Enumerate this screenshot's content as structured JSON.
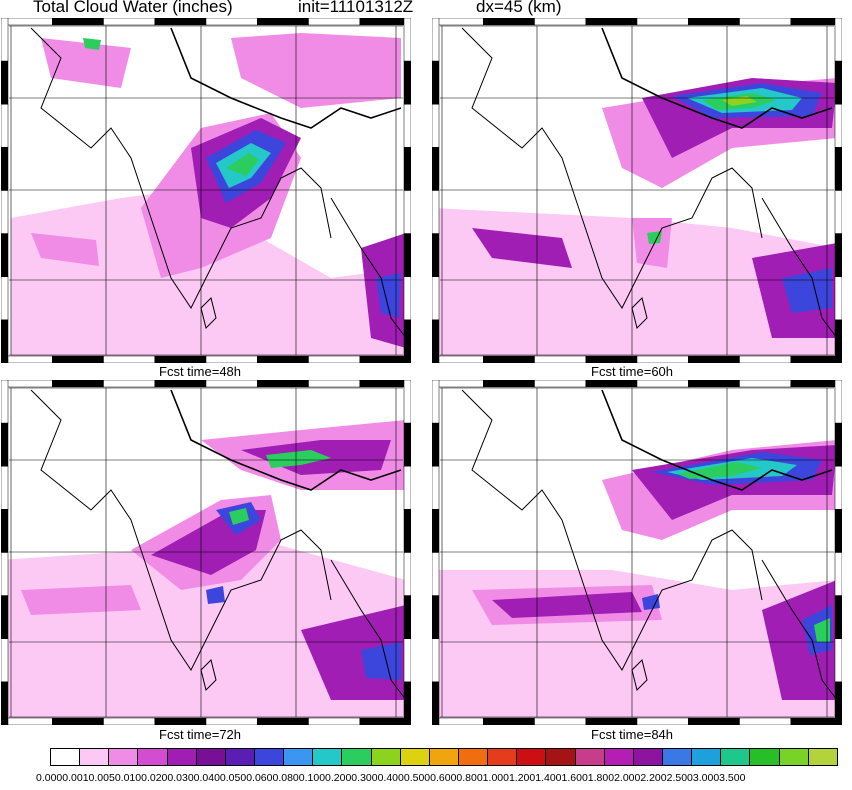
{
  "header": {
    "title": "Total Cloud Water (inches)",
    "init": "init=11101312Z",
    "dx": "dx=45 (km)"
  },
  "panels": [
    {
      "id": "p48",
      "fcst_label": "Fcst time=48h"
    },
    {
      "id": "p60",
      "fcst_label": "Fcst time=60h"
    },
    {
      "id": "p72",
      "fcst_label": "Fcst time=72h"
    },
    {
      "id": "p84",
      "fcst_label": "Fcst time=84h"
    }
  ],
  "colorbar": {
    "colors": [
      "#ffffff",
      "#fcc8f4",
      "#f08ce6",
      "#d24dd2",
      "#a01eb4",
      "#780f96",
      "#5a1eb4",
      "#3c46dc",
      "#3a96f0",
      "#24c8c8",
      "#2ccd5f",
      "#8cd21e",
      "#dcd20f",
      "#f0a50f",
      "#f06e0f",
      "#e63c1e",
      "#cd0f14",
      "#a51414",
      "#c83c8c",
      "#b41eb4",
      "#8c14a0",
      "#3a78e6",
      "#1ea0dc",
      "#1ec88c",
      "#28be28",
      "#78d228",
      "#b4d23c"
    ],
    "labels_text": "0.0000.0010.0050.0100.0200.0300.0400.0500.0600.0800.1000.2000.3000.4000.5000.6000.8001.0001.2001.4001.6001.8002.0002.2002.5003.0003.500"
  },
  "map_legend": {
    "land_outline": "#000000",
    "grid": "#000000",
    "field_colors": {
      "light": "#fcc8f4",
      "mid": "#f08ce6",
      "strong": "#d24dd2",
      "purple": "#a01eb4",
      "blue": "#3c46dc",
      "cyan": "#24c8c8",
      "green": "#2ccd5f",
      "yellow": "#8cd21e"
    }
  }
}
